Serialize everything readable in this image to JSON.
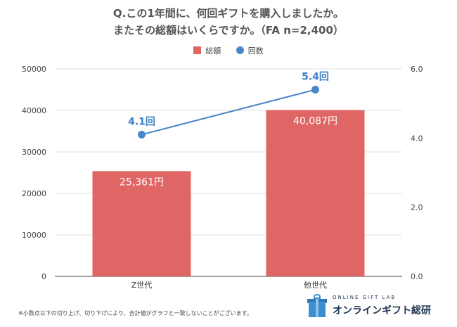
{
  "title_line1": "Q.この1年間に、何回ギフトを購入しましたか。",
  "title_line2": "またその総額はいくらですか。（FA n=2,400）",
  "legend": {
    "bar_label": "総額",
    "line_label": "回数"
  },
  "footnote": "※小数点以下の切り上げ、切り下げにより、合計値がグラフと一致しないことがございます。",
  "logo": {
    "subtitle": "ONLINE GIFT LAB",
    "name": "オンラインギフト総研"
  },
  "colors": {
    "bar": "#e06666",
    "line": "#4a86c8",
    "line_label": "#3f7fc6",
    "grid": "#e0e0e0",
    "axis": "#444444"
  },
  "chart_data": {
    "type": "bar",
    "categories": [
      "Z世代",
      "他世代"
    ],
    "series": [
      {
        "name": "総額",
        "type": "bar",
        "axis": "left",
        "values": [
          25361,
          40087
        ],
        "labels": [
          "25,361円",
          "40,087円"
        ]
      },
      {
        "name": "回数",
        "type": "line",
        "axis": "right",
        "values": [
          4.1,
          5.4
        ],
        "labels": [
          "4.1回",
          "5.4回"
        ]
      }
    ],
    "ylim_left": [
      0,
      50000
    ],
    "yticks_left": [
      "0",
      "10000",
      "20000",
      "30000",
      "40000",
      "50000"
    ],
    "ylim_right": [
      0,
      6
    ],
    "yticks_right": [
      "0.0",
      "2.0",
      "4.0",
      "6.0"
    ],
    "grid": true,
    "legend_position": "top-center"
  }
}
